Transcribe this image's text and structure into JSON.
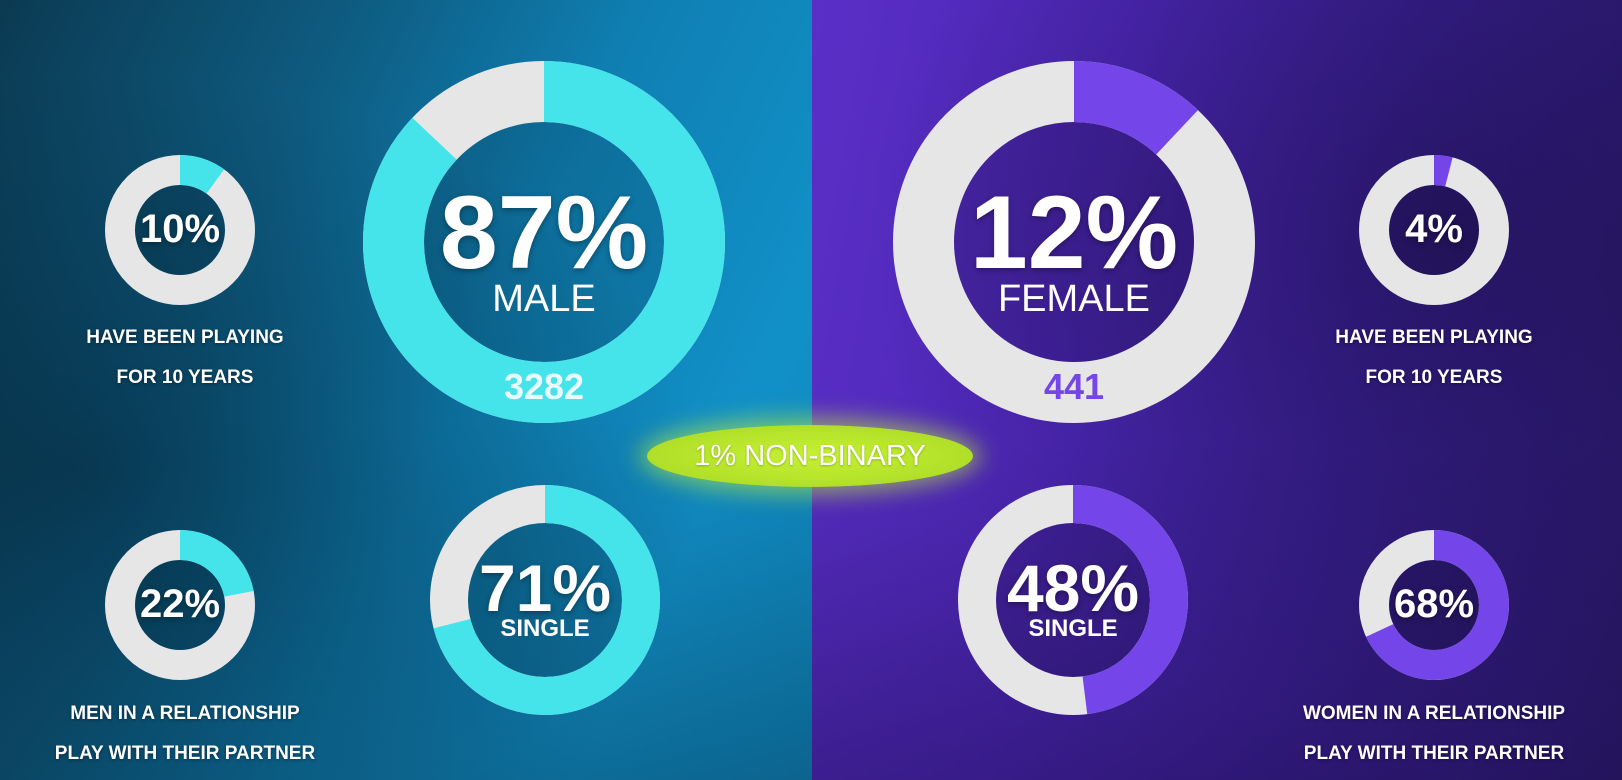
{
  "colors": {
    "male_accent": "#45e3ea",
    "female_accent": "#7446ea",
    "track": "#e6e6e6",
    "nonbinary_pill": "#b4e22a"
  },
  "male": {
    "main": {
      "value": 87,
      "percent_label": "87%",
      "label": "MALE",
      "count": "3282"
    },
    "playing": {
      "value": 10,
      "percent_label": "10%",
      "caption_line1": "HAVE BEEN PLAYING",
      "caption_line2": "FOR 10 YEARS"
    },
    "relationship": {
      "value": 22,
      "percent_label": "22%",
      "caption_line1": "MEN IN A RELATIONSHIP",
      "caption_line2": "PLAY WITH THEIR PARTNER"
    },
    "single": {
      "value": 71,
      "percent_label": "71%",
      "label": "SINGLE"
    }
  },
  "female": {
    "main": {
      "value": 12,
      "percent_label": "12%",
      "label": "FEMALE",
      "count": "441"
    },
    "playing": {
      "value": 4,
      "percent_label": "4%",
      "caption_line1": "HAVE  BEEN PLAYING",
      "caption_line2": "FOR 10 YEARS"
    },
    "relationship": {
      "value": 68,
      "percent_label": "68%",
      "caption_line1": "WOMEN IN A RELATIONSHIP",
      "caption_line2": "PLAY WITH THEIR PARTNER"
    },
    "single": {
      "value": 48,
      "percent_label": "48%",
      "label": "SINGLE"
    }
  },
  "nonbinary": {
    "value": 1,
    "label": "1% NON-BINARY"
  },
  "chart_data": [
    {
      "type": "pie",
      "variant": "donut",
      "labels": [
        "MALE",
        "other"
      ],
      "values": [
        87,
        13
      ],
      "center_text": "87%",
      "count": "3282"
    },
    {
      "type": "pie",
      "variant": "donut",
      "labels": [
        "FEMALE",
        "other"
      ],
      "values": [
        12,
        88
      ],
      "center_text": "12%",
      "count": "441"
    },
    {
      "type": "pie",
      "variant": "donut",
      "labels": [
        "HAVE BEEN PLAYING FOR 10 YEARS",
        "other"
      ],
      "values": [
        10,
        90
      ],
      "center_text": "10%"
    },
    {
      "type": "pie",
      "variant": "donut",
      "labels": [
        "HAVE  BEEN PLAYING FOR 10 YEARS",
        "other"
      ],
      "values": [
        4,
        96
      ],
      "center_text": "4%"
    },
    {
      "type": "pie",
      "variant": "donut",
      "labels": [
        "SINGLE",
        "other"
      ],
      "values": [
        71,
        29
      ],
      "center_text": "71%"
    },
    {
      "type": "pie",
      "variant": "donut",
      "labels": [
        "SINGLE",
        "other"
      ],
      "values": [
        48,
        52
      ],
      "center_text": "48%"
    },
    {
      "type": "pie",
      "variant": "donut",
      "labels": [
        "MEN IN A RELATIONSHIP PLAY WITH THEIR PARTNER",
        "other"
      ],
      "values": [
        22,
        78
      ],
      "center_text": "22%"
    },
    {
      "type": "pie",
      "variant": "donut",
      "labels": [
        "WOMEN IN A RELATIONSHIP PLAY WITH THEIR PARTNER",
        "other"
      ],
      "values": [
        68,
        32
      ],
      "center_text": "68%"
    }
  ]
}
